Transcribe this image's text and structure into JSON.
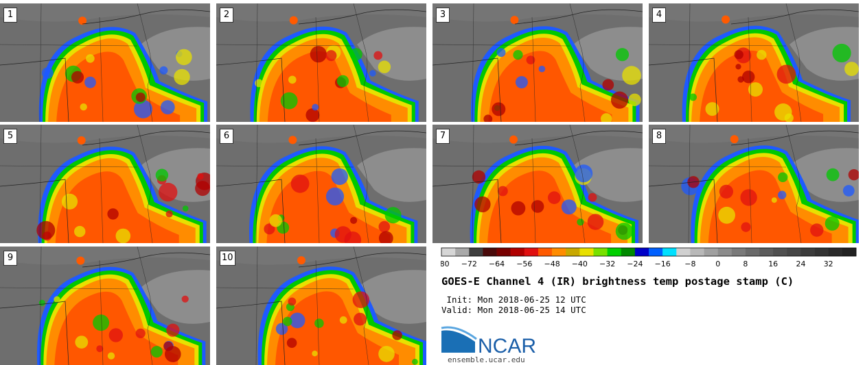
{
  "panels": [
    {
      "label": "1"
    },
    {
      "label": "2"
    },
    {
      "label": "3"
    },
    {
      "label": "4"
    },
    {
      "label": "5"
    },
    {
      "label": "6"
    },
    {
      "label": "7"
    },
    {
      "label": "8"
    },
    {
      "label": "9"
    },
    {
      "label": "10"
    }
  ],
  "colorbar": {
    "tick_labels": [
      "−80",
      "−72",
      "−64",
      "−56",
      "−48",
      "−40",
      "−32",
      "−24",
      "−16",
      "−8",
      "0",
      "8",
      "16",
      "24",
      "32"
    ],
    "tick_values": [
      -80,
      -72,
      -64,
      -56,
      -48,
      -40,
      -32,
      -24,
      -16,
      -8,
      0,
      8,
      16,
      24,
      32
    ],
    "range": [
      -80,
      40
    ],
    "step": 4,
    "colors": [
      "#d6d6d6",
      "#a9a9a9",
      "#3f3f3f",
      "#4a0a0a",
      "#780000",
      "#b00000",
      "#e01010",
      "#ff5a00",
      "#ff8c00",
      "#c8a800",
      "#e8e000",
      "#78e000",
      "#00d000",
      "#008a00",
      "#0000c8",
      "#0060ff",
      "#00e0ff",
      "#d0d0d0",
      "#b8b8b8",
      "#a0a0a0",
      "#8c8c8c",
      "#7a7a7a",
      "#6a6a6a",
      "#5c5c5c",
      "#505050",
      "#464646",
      "#3c3c3c",
      "#333333",
      "#2a2a2a",
      "#222222"
    ]
  },
  "title": "GOES-E Channel 4 (IR) brightness temp postage stamp (C)",
  "init": " Init: Mon 2018-06-25 12 UTC",
  "valid": "Valid: Mon 2018-06-25 14 UTC",
  "logo": {
    "text": "NCAR",
    "color": "#1a5ea8",
    "subtext": "ensemble.ucar.edu"
  }
}
